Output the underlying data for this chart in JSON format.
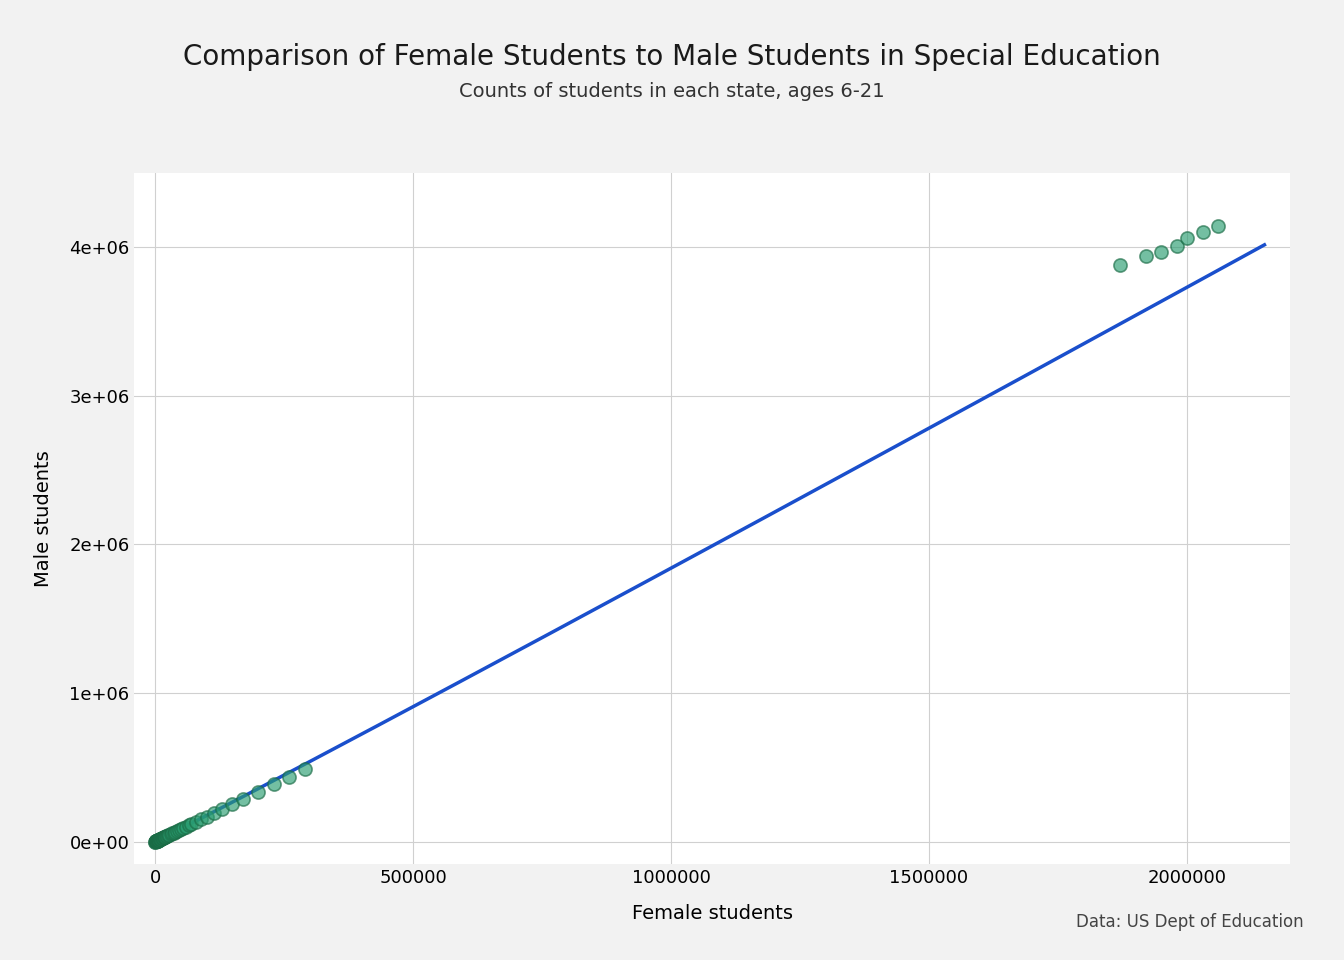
{
  "title": "Comparison of Female Students to Male Students in Special Education",
  "subtitle": "Counts of students in each state, ages 6-21",
  "xlabel": "Female students",
  "ylabel": "Male students",
  "source_text": "Data: US Dept of Education",
  "background_color": "#f2f2f2",
  "plot_background_color": "#ffffff",
  "grid_color": "#d0d0d0",
  "line_color": "#1a4fcc",
  "scatter_color": "#2a9d70",
  "scatter_edge_color": "#1a6b45",
  "xlim": [
    -40000,
    2200000
  ],
  "ylim": [
    -150000,
    4500000
  ],
  "xticks": [
    0,
    500000,
    1000000,
    1500000,
    2000000
  ],
  "yticks": [
    0,
    1000000,
    2000000,
    3000000,
    4000000
  ],
  "female_values": [
    500,
    800,
    1000,
    1200,
    1500,
    1800,
    2000,
    2200,
    2500,
    2800,
    3000,
    3200,
    3500,
    3800,
    4000,
    4200,
    4500,
    4800,
    5000,
    5500,
    6000,
    6500,
    7000,
    7500,
    8000,
    8500,
    9000,
    9500,
    10000,
    11000,
    12000,
    13000,
    14000,
    15000,
    16000,
    17000,
    18000,
    19000,
    20000,
    22000,
    24000,
    26000,
    28000,
    30000,
    33000,
    36000,
    39000,
    42000,
    46000,
    50000,
    55000,
    60000,
    65000,
    70000,
    80000,
    90000,
    100000,
    115000,
    130000,
    150000,
    170000,
    200000,
    230000,
    260000,
    290000,
    1870000,
    1920000,
    1950000,
    1980000,
    2000000,
    2030000,
    2060000
  ],
  "male_values": [
    840,
    1350,
    1680,
    2020,
    2520,
    3020,
    3360,
    3700,
    4200,
    4700,
    5040,
    5380,
    5880,
    6380,
    6720,
    7060,
    7560,
    8060,
    8400,
    9240,
    10080,
    10920,
    11760,
    12600,
    13440,
    14280,
    15120,
    15960,
    16800,
    18480,
    20160,
    21840,
    23520,
    25200,
    26880,
    28560,
    30240,
    31920,
    33600,
    36960,
    40320,
    43680,
    47040,
    50400,
    55440,
    60480,
    65520,
    70560,
    77280,
    84000,
    92400,
    100800,
    109200,
    117600,
    134400,
    151200,
    168000,
    193200,
    218400,
    252000,
    285600,
    336000,
    386400,
    436800,
    487200,
    3880000,
    3940000,
    3970000,
    4010000,
    4060000,
    4100000,
    4140000
  ],
  "title_fontsize": 20,
  "subtitle_fontsize": 14,
  "axis_label_fontsize": 14,
  "tick_fontsize": 13,
  "source_fontsize": 12
}
